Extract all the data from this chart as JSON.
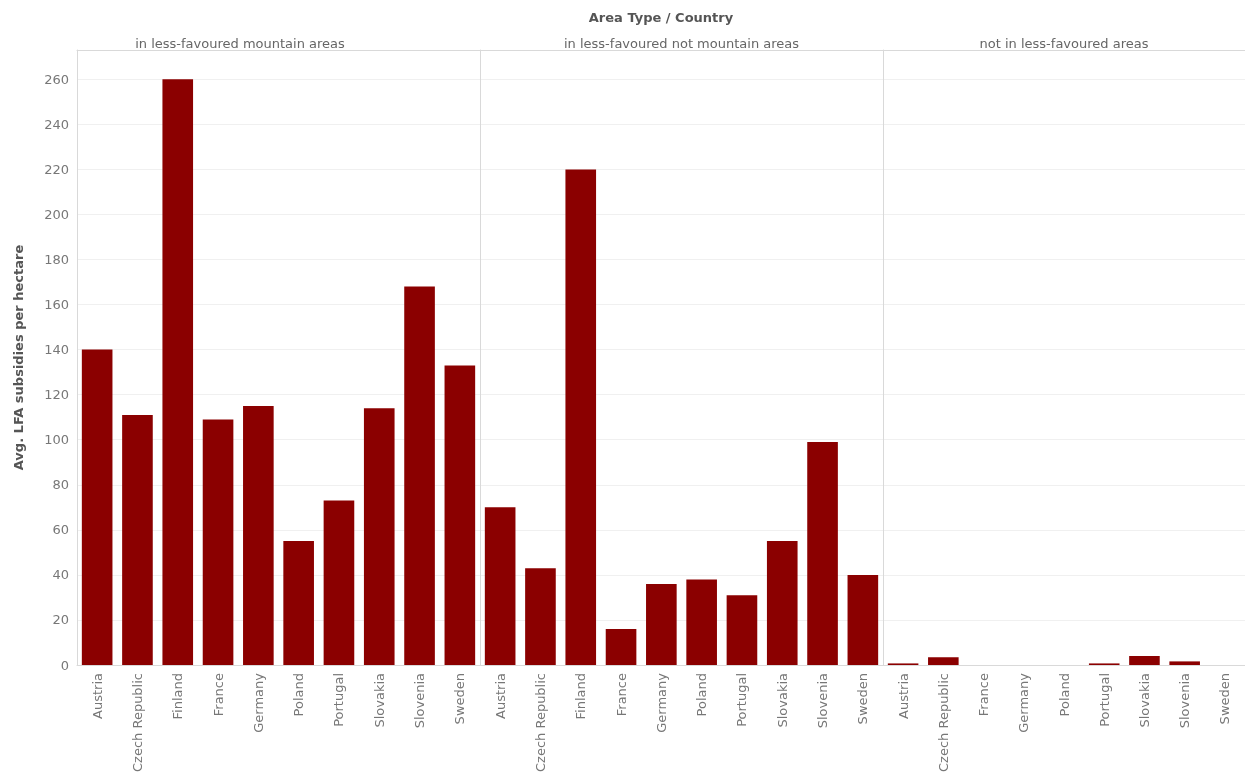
{
  "chart_data": [
    {
      "type": "bar",
      "title": "in less-favoured mountain areas",
      "ylabel": "Avg. LFA subsidies per hectare",
      "annotations": [
        "Area Type / Country"
      ],
      "categories": [
        "Austria",
        "Czech Republic",
        "Finland",
        "France",
        "Germany",
        "Poland",
        "Portugal",
        "Slovakia",
        "Slovenia",
        "Sweden"
      ],
      "values": [
        140,
        111,
        260,
        109,
        115,
        55,
        73,
        114,
        168,
        133
      ],
      "color": "#8b0000",
      "ylim": [
        0,
        273
      ],
      "yticks": [
        0,
        20,
        40,
        60,
        80,
        100,
        120,
        140,
        160,
        180,
        200,
        220,
        240,
        260
      ],
      "grid": "y"
    },
    {
      "type": "bar",
      "title": "in less-favoured not mountain areas",
      "categories": [
        "Austria",
        "Czech Republic",
        "Finland",
        "France",
        "Germany",
        "Poland",
        "Portugal",
        "Slovakia",
        "Slovenia",
        "Sweden"
      ],
      "values": [
        70,
        43,
        220,
        16,
        36,
        38,
        31,
        55,
        99,
        40
      ],
      "color": "#8b0000",
      "ylim": [
        0,
        273
      ],
      "yticks": [
        0,
        20,
        40,
        60,
        80,
        100,
        120,
        140,
        160,
        180,
        200,
        220,
        240,
        260
      ],
      "grid": "y",
      "tick_labels": "x"
    },
    {
      "type": "bar",
      "title": "not in less-favoured areas",
      "categories": [
        "Austria",
        "Czech Republic",
        "France",
        "Germany",
        "Poland",
        "Portugal",
        "Slovakia",
        "Slovenia",
        "Sweden"
      ],
      "values": [
        0.7,
        3.4,
        0,
        0,
        0,
        0.7,
        4,
        1.6,
        0
      ],
      "color": "#8b0000",
      "ylim": [
        0,
        273
      ],
      "yticks": [
        0,
        20,
        40,
        60,
        80,
        100,
        120,
        140,
        160,
        180,
        200,
        220,
        240,
        260
      ],
      "grid": "y",
      "tick_labels": "x"
    }
  ]
}
